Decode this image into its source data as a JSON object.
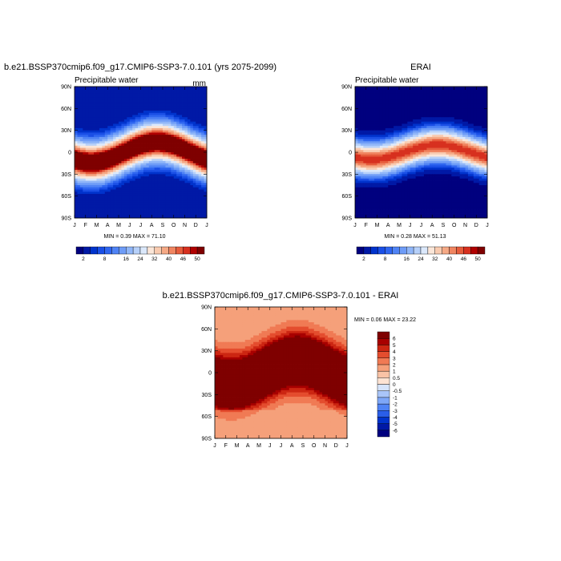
{
  "chart_data": [
    {
      "type": "heatmap",
      "title": "b.e21.BSSP370cmip6.f09_g17.CMIP6-SSP3-7.0.101 (yrs 2075-2099)",
      "subtitle": "Precipitable water",
      "units": "mm",
      "x_ticks": [
        "J",
        "F",
        "M",
        "A",
        "M",
        "J",
        "J",
        "A",
        "S",
        "O",
        "N",
        "D",
        "J"
      ],
      "y_ticks": [
        "90N",
        "60N",
        "30N",
        "0",
        "30S",
        "60S",
        "90S"
      ],
      "y_range": [
        -90,
        90
      ],
      "stats": {
        "min": 0.39,
        "max": 71.1
      },
      "stats_text": "MIN =   0.39 MAX =  71.10",
      "field": {
        "eq_value": 62,
        "pole_value": 2,
        "center_shift_deg": 14,
        "decay_width_deg": 24
      },
      "colorbar": {
        "orientation": "horizontal",
        "levels": [
          2,
          4,
          6,
          8,
          10,
          12,
          16,
          20,
          24,
          28,
          32,
          36,
          40,
          43,
          46,
          48,
          50
        ],
        "labels": [
          "2",
          "8",
          "16",
          "24",
          "32",
          "40",
          "46",
          "50"
        ],
        "colors": [
          "#00007f",
          "#0019a6",
          "#0033cc",
          "#1a4fe6",
          "#2f66f0",
          "#4f83f5",
          "#6e9cf7",
          "#90b6f8",
          "#b6d0f9",
          "#dbe8fb",
          "#fbe6d8",
          "#f9cbb0",
          "#f5a985",
          "#f08561",
          "#e65c3c",
          "#d7301f",
          "#b00000",
          "#7f0000"
        ]
      }
    },
    {
      "type": "heatmap",
      "title": "ERAI",
      "subtitle": "Precipitable water",
      "x_ticks": [
        "J",
        "F",
        "M",
        "A",
        "M",
        "J",
        "J",
        "A",
        "S",
        "O",
        "N",
        "D",
        "J"
      ],
      "y_ticks": [
        "90N",
        "60N",
        "30N",
        "0",
        "30S",
        "60S",
        "90S"
      ],
      "y_range": [
        -90,
        90
      ],
      "stats": {
        "min": 0.28,
        "max": 51.13
      },
      "stats_text": "MIN =   0.28 MAX =  51.13",
      "field": {
        "eq_value": 48,
        "pole_value": 1,
        "center_shift_deg": 10,
        "decay_width_deg": 20
      },
      "colorbar": {
        "orientation": "horizontal",
        "levels": [
          2,
          4,
          6,
          8,
          10,
          12,
          16,
          20,
          24,
          28,
          32,
          36,
          40,
          43,
          46,
          48,
          50
        ],
        "labels": [
          "2",
          "8",
          "16",
          "24",
          "32",
          "40",
          "46",
          "50"
        ],
        "colors": [
          "#00007f",
          "#0019a6",
          "#0033cc",
          "#1a4fe6",
          "#2f66f0",
          "#4f83f5",
          "#6e9cf7",
          "#90b6f8",
          "#b6d0f9",
          "#dbe8fb",
          "#fbe6d8",
          "#f9cbb0",
          "#f5a985",
          "#f08561",
          "#e65c3c",
          "#d7301f",
          "#b00000",
          "#7f0000"
        ]
      }
    },
    {
      "type": "heatmap",
      "title": "b.e21.BSSP370cmip6.f09_g17.CMIP6-SSP3-7.0.101 - ERAI",
      "x_ticks": [
        "J",
        "F",
        "M",
        "A",
        "M",
        "J",
        "J",
        "A",
        "S",
        "O",
        "N",
        "D",
        "J"
      ],
      "y_ticks": [
        "90N",
        "60N",
        "30N",
        "0",
        "30S",
        "60S",
        "90S"
      ],
      "y_range": [
        -90,
        90
      ],
      "stats": {
        "min": 0.06,
        "max": 23.22
      },
      "stats_text": "MIN =   0.06 MAX =  23.22",
      "field": {
        "eq_value": 14,
        "pole_value": 1.2,
        "center_shift_deg": 16,
        "decay_width_deg": 34
      },
      "colorbar": {
        "orientation": "vertical",
        "levels": [
          -6,
          -5,
          -4,
          -3,
          -2,
          -1,
          -0.5,
          0,
          0.5,
          1,
          2,
          3,
          4,
          5,
          6
        ],
        "labels": [
          "-6",
          "-5",
          "-4",
          "-3",
          "-2",
          "-1",
          "-0.5",
          "0",
          "0.5",
          "1",
          "2",
          "3",
          "4",
          "5",
          "6"
        ],
        "colors": [
          "#00007f",
          "#0019a6",
          "#0033cc",
          "#2a5ee8",
          "#4f83f5",
          "#7ea7f8",
          "#a9c5f9",
          "#d6e4fb",
          "#fde3d3",
          "#f9c3a6",
          "#f5a07a",
          "#f07a54",
          "#e44d2e",
          "#cc2612",
          "#a80000",
          "#7f0000"
        ]
      }
    }
  ]
}
